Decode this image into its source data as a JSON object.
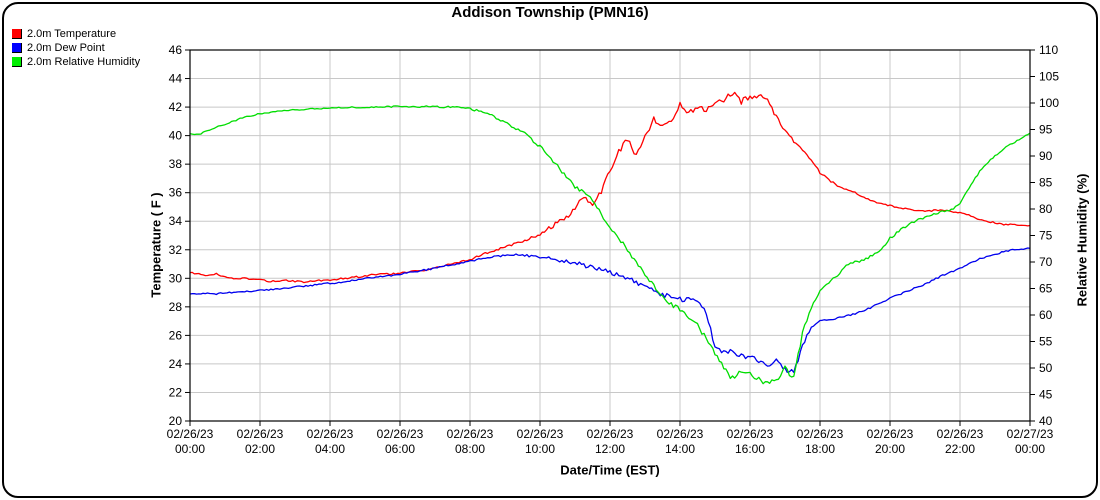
{
  "chart_data": {
    "type": "line",
    "title": "Addison Township (PMN16)",
    "xlabel": "Date/Time (EST)",
    "ylabel_left": "Temperature ( F )",
    "ylabel_right": "Relative Humidity (%)",
    "xlim_hours": [
      0,
      24
    ],
    "x_step_hours": 0.25,
    "ylim_left": [
      20,
      46
    ],
    "ylim_right": [
      40,
      110
    ],
    "y_ticks_left": [
      46,
      44,
      42,
      40,
      38,
      36,
      34,
      32,
      30,
      28,
      26,
      24,
      22,
      20
    ],
    "y_ticks_right": [
      110,
      105,
      100,
      95,
      90,
      85,
      80,
      75,
      70,
      65,
      60,
      55,
      50,
      45,
      40
    ],
    "x_ticks": [
      {
        "date": "02/26/23",
        "time": "00:00"
      },
      {
        "date": "02/26/23",
        "time": "02:00"
      },
      {
        "date": "02/26/23",
        "time": "04:00"
      },
      {
        "date": "02/26/23",
        "time": "06:00"
      },
      {
        "date": "02/26/23",
        "time": "08:00"
      },
      {
        "date": "02/26/23",
        "time": "10:00"
      },
      {
        "date": "02/26/23",
        "time": "12:00"
      },
      {
        "date": "02/26/23",
        "time": "14:00"
      },
      {
        "date": "02/26/23",
        "time": "16:00"
      },
      {
        "date": "02/26/23",
        "time": "18:00"
      },
      {
        "date": "02/26/23",
        "time": "20:00"
      },
      {
        "date": "02/26/23",
        "time": "22:00"
      },
      {
        "date": "02/27/23",
        "time": "00:00"
      }
    ],
    "grid": true,
    "grid_color": "#c8c8c8",
    "series": [
      {
        "name": "2.0m Temperature",
        "color": "#ff0000",
        "axis": "left",
        "noise": [
          [
            0,
            0.05
          ],
          [
            9.5,
            0.07
          ],
          [
            10.5,
            0.18
          ],
          [
            16.5,
            0.2
          ],
          [
            17.5,
            0.08
          ],
          [
            19,
            0.05
          ],
          [
            24,
            0.05
          ]
        ],
        "values": [
          30.4,
          30.3,
          30.2,
          30.3,
          30.1,
          30.0,
          30.0,
          29.95,
          29.9,
          29.8,
          29.8,
          29.85,
          29.8,
          29.75,
          29.8,
          29.85,
          29.9,
          29.95,
          30.0,
          30.1,
          30.15,
          30.25,
          30.3,
          30.3,
          30.35,
          30.45,
          30.55,
          30.6,
          30.75,
          30.9,
          31.0,
          31.15,
          31.3,
          31.55,
          31.8,
          32.0,
          32.2,
          32.4,
          32.6,
          32.85,
          33.1,
          33.5,
          33.9,
          34.3,
          34.9,
          35.8,
          35.2,
          36.0,
          37.6,
          38.9,
          39.7,
          38.6,
          39.9,
          41.2,
          40.6,
          41.0,
          42.3,
          41.6,
          42.0,
          41.8,
          42.2,
          42.5,
          43.0,
          42.4,
          42.7,
          42.9,
          42.4,
          41.3,
          40.3,
          39.6,
          39.0,
          38.3,
          37.4,
          36.9,
          36.5,
          36.2,
          36.0,
          35.7,
          35.4,
          35.2,
          35.1,
          34.95,
          34.85,
          34.75,
          34.7,
          34.75,
          34.8,
          34.7,
          34.6,
          34.45,
          34.15,
          34.0,
          33.9,
          33.75,
          33.8,
          33.7,
          33.7
        ]
      },
      {
        "name": "2.0m Dew Point",
        "color": "#0000ee",
        "axis": "left",
        "noise": [
          [
            0,
            0.04
          ],
          [
            9,
            0.06
          ],
          [
            10,
            0.12
          ],
          [
            13.5,
            0.18
          ],
          [
            17.3,
            0.2
          ],
          [
            17.8,
            0.06
          ],
          [
            24,
            0.05
          ]
        ],
        "values": [
          28.9,
          28.9,
          28.95,
          28.9,
          29.0,
          29.0,
          29.05,
          29.1,
          29.15,
          29.2,
          29.25,
          29.3,
          29.4,
          29.45,
          29.5,
          29.6,
          29.65,
          29.7,
          29.8,
          29.9,
          30.0,
          30.05,
          30.15,
          30.2,
          30.3,
          30.4,
          30.5,
          30.6,
          30.7,
          30.85,
          30.95,
          31.1,
          31.2,
          31.35,
          31.45,
          31.55,
          31.6,
          31.65,
          31.6,
          31.55,
          31.5,
          31.4,
          31.3,
          31.2,
          31.1,
          30.9,
          30.8,
          30.6,
          30.4,
          30.2,
          30.0,
          29.7,
          29.5,
          29.1,
          28.8,
          28.7,
          28.5,
          28.6,
          28.4,
          27.5,
          25.3,
          24.8,
          24.9,
          24.6,
          24.5,
          24.2,
          23.9,
          24.4,
          23.6,
          23.4,
          25.3,
          26.6,
          27.0,
          27.1,
          27.2,
          27.35,
          27.5,
          27.75,
          28.0,
          28.3,
          28.6,
          28.85,
          29.1,
          29.35,
          29.6,
          29.9,
          30.2,
          30.45,
          30.7,
          31.0,
          31.3,
          31.5,
          31.7,
          31.85,
          32.0,
          32.05,
          32.1
        ]
      },
      {
        "name": "2.0m Relative Humidity",
        "color": "#00dd00",
        "axis": "right",
        "noise": [
          [
            0,
            0.12
          ],
          [
            3,
            0.1
          ],
          [
            8,
            0.2
          ],
          [
            9.5,
            0.35
          ],
          [
            14,
            0.4
          ],
          [
            15,
            0.5
          ],
          [
            17.4,
            0.5
          ],
          [
            18,
            0.25
          ],
          [
            22,
            0.2
          ],
          [
            24,
            0.15
          ]
        ],
        "values": [
          94.2,
          94.0,
          94.8,
          95.4,
          96.0,
          96.6,
          97.2,
          97.6,
          98.0,
          98.2,
          98.4,
          98.6,
          98.7,
          98.8,
          98.9,
          98.9,
          99.0,
          99.1,
          99.1,
          99.2,
          99.2,
          99.2,
          99.2,
          99.3,
          99.3,
          99.3,
          99.3,
          99.3,
          99.3,
          99.3,
          99.3,
          99.1,
          98.9,
          98.5,
          98.0,
          97.2,
          96.3,
          95.5,
          94.4,
          93.2,
          91.8,
          90.0,
          88.0,
          86.0,
          84.2,
          83.0,
          81.8,
          79.0,
          76.5,
          74.5,
          72.3,
          70.0,
          67.5,
          65.5,
          63.5,
          62.0,
          61.0,
          59.5,
          58.0,
          55.5,
          52.5,
          50.0,
          48.0,
          49.5,
          48.8,
          48.0,
          47.0,
          47.8,
          50.0,
          48.0,
          56.5,
          61.5,
          64.5,
          66.0,
          67.5,
          69.3,
          70.0,
          70.3,
          71.3,
          72.3,
          74.5,
          75.8,
          77.0,
          77.8,
          78.5,
          79.0,
          79.5,
          79.9,
          81.0,
          84.0,
          86.5,
          88.5,
          90.0,
          91.3,
          92.4,
          93.4,
          94.3
        ]
      }
    ]
  }
}
